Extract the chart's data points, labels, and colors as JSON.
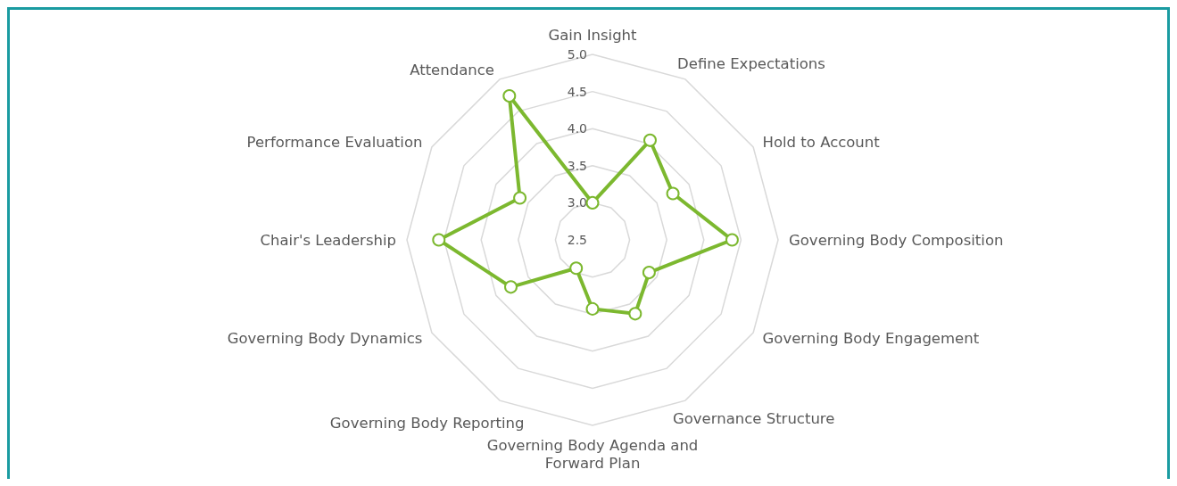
{
  "chart_data": {
    "type": "radar",
    "categories": [
      "Gain Insight",
      "Define Expectations",
      "Hold to Account",
      "Governing Body Composition",
      "Governing Body Engagement",
      "Governance Structure",
      "Governing Body Agenda and Forward Plan",
      "Governing Body Reporting",
      "Governing Body Dynamics",
      "Chair's Leadership",
      "Performance Evaluation",
      "Attendance"
    ],
    "series": [
      {
        "color": "#7cb82f",
        "values": [
          3.0,
          4.05,
          3.75,
          4.38,
          3.38,
          3.65,
          3.43,
          2.94,
          3.77,
          4.57,
          3.63,
          4.74
        ]
      }
    ],
    "ylim": [
      2.5,
      5
    ],
    "yticks": [
      2.5,
      {
        "value": 3,
        "label": "3.0"
      },
      3.5,
      {
        "value": 4,
        "label": "4.0"
      },
      4.5,
      {
        "value": 5,
        "label": "5.0"
      }
    ],
    "grid": true,
    "marker": "circle",
    "line_style": "solid"
  }
}
